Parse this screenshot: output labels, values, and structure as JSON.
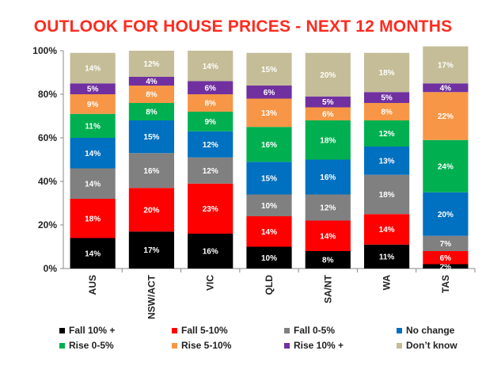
{
  "chart_data": {
    "type": "bar",
    "stacked": true,
    "title": "OUTLOOK FOR HOUSE PRICES - NEXT 12 MONTHS",
    "categories": [
      "AUS",
      "NSW/ACT",
      "VIC",
      "QLD",
      "SA/NT",
      "WA",
      "TAS"
    ],
    "ylim": [
      0,
      100
    ],
    "yticks": [
      "0%",
      "20%",
      "40%",
      "60%",
      "80%",
      "100%"
    ],
    "legend_position": "bottom",
    "series": [
      {
        "name": "Fall 10% +",
        "color": "#000000",
        "values": [
          14,
          17,
          16,
          10,
          8,
          11,
          2
        ]
      },
      {
        "name": "Fall 5-10%",
        "color": "#ff0000",
        "values": [
          18,
          20,
          23,
          14,
          14,
          14,
          6
        ]
      },
      {
        "name": "Fall 0-5%",
        "color": "#808080",
        "values": [
          14,
          16,
          12,
          10,
          12,
          18,
          7
        ]
      },
      {
        "name": "No change",
        "color": "#0070c0",
        "values": [
          14,
          15,
          12,
          15,
          16,
          13,
          20
        ]
      },
      {
        "name": "Rise 0-5%",
        "color": "#00b050",
        "values": [
          11,
          8,
          9,
          16,
          18,
          12,
          24
        ]
      },
      {
        "name": "Rise 5-10%",
        "color": "#f79646",
        "values": [
          9,
          8,
          8,
          13,
          6,
          8,
          22
        ]
      },
      {
        "name": "Rise 10% +",
        "color": "#7030a0",
        "values": [
          5,
          4,
          6,
          6,
          5,
          5,
          4
        ]
      },
      {
        "name": "Don’t know",
        "color": "#c4bd97",
        "values": [
          14,
          12,
          14,
          15,
          20,
          18,
          17
        ]
      }
    ]
  }
}
